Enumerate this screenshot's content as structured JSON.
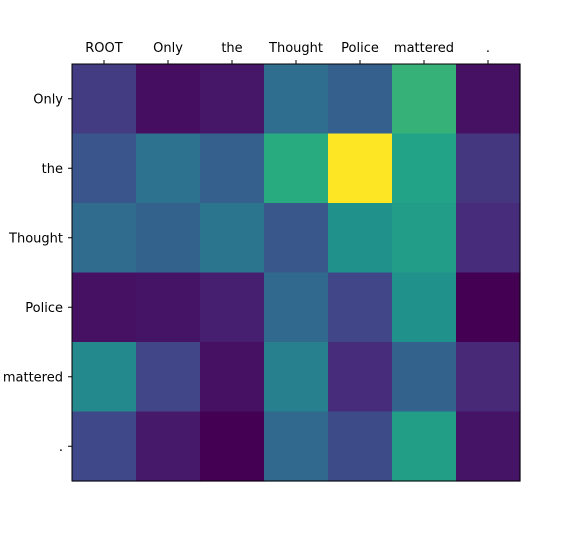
{
  "chart_data": {
    "type": "heatmap",
    "x_labels": [
      "ROOT",
      "Only",
      "the",
      "Thought",
      "Police",
      "mattered",
      "."
    ],
    "y_labels": [
      "Only",
      "the",
      "Thought",
      "Police",
      "mattered",
      "."
    ],
    "x_axis_position": "top",
    "colormap": "viridis",
    "value_range": [
      0,
      1
    ],
    "grid": false,
    "values": [
      [
        0.22,
        0.05,
        0.08,
        0.45,
        0.38,
        0.78,
        0.06
      ],
      [
        0.33,
        0.47,
        0.38,
        0.76,
        1.0,
        0.72,
        0.2
      ],
      [
        0.44,
        0.4,
        0.49,
        0.34,
        0.63,
        0.69,
        0.16
      ],
      [
        0.06,
        0.07,
        0.11,
        0.43,
        0.26,
        0.63,
        0.0
      ],
      [
        0.59,
        0.26,
        0.06,
        0.54,
        0.16,
        0.4,
        0.15
      ],
      [
        0.27,
        0.09,
        0.0,
        0.43,
        0.29,
        0.7,
        0.07
      ]
    ]
  }
}
